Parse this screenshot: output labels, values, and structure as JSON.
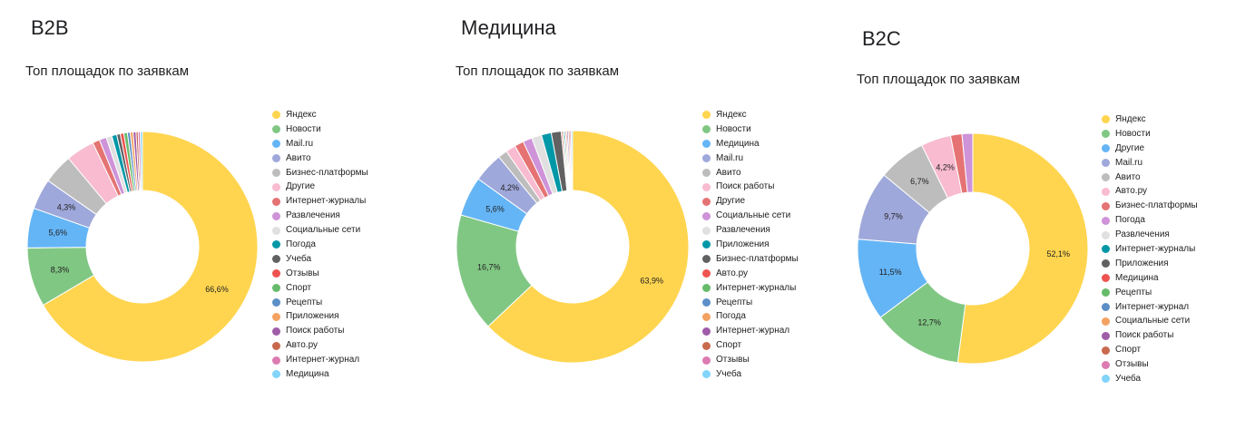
{
  "chart_data": [
    {
      "type": "pie",
      "section_title": "B2B",
      "title": "Топ площадок по заявкам",
      "categories": [
        "Яндекс",
        "Новости",
        "Mail.ru",
        "Авито",
        "Бизнес-платформы",
        "Другие",
        "Интернет-журналы",
        "Развлечения",
        "Социальные сети",
        "Погода",
        "Учеба",
        "Отзывы",
        "Спорт",
        "Рецепты",
        "Приложения",
        "Поиск работы",
        "Авто.ру",
        "Интернет-журнал",
        "Медицина"
      ],
      "values": [
        66.6,
        8.3,
        5.6,
        4.3,
        4.2,
        4.0,
        1.0,
        1.0,
        0.8,
        0.7,
        0.5,
        0.5,
        0.5,
        0.4,
        0.4,
        0.4,
        0.3,
        0.3,
        0.3
      ],
      "value_labels": [
        "66,6%",
        "8,3%",
        "5,6%",
        "4,3%",
        "",
        "",
        "",
        "",
        "",
        "",
        "",
        "",
        "",
        "",
        "",
        "",
        "",
        "",
        ""
      ],
      "colors": [
        "#ffd54f",
        "#81c784",
        "#64b5f6",
        "#9fa8da",
        "#bdbdbd",
        "#f8bbd0",
        "#e57373",
        "#ce93d8",
        "#e0e0e0",
        "#0097a7",
        "#616161",
        "#ef5350",
        "#66bb6a",
        "#5c8fc7",
        "#f4a261",
        "#a05ca8",
        "#c8694e",
        "#dc7bb1",
        "#81d4fa"
      ],
      "legend_position": "right"
    },
    {
      "type": "pie",
      "section_title": "Медицина",
      "title": "Топ площадок по заявкам",
      "categories": [
        "Яндекс",
        "Новости",
        "Медицина",
        "Mail.ru",
        "Авито",
        "Поиск работы",
        "Другие",
        "Социальные сети",
        "Развлечения",
        "Приложения",
        "Бизнес-платформы",
        "Авто.ру",
        "Интернет-журналы",
        "Рецепты",
        "Погода",
        "Интернет-журнал",
        "Спорт",
        "Отзывы",
        "Учеба"
      ],
      "values": [
        63.9,
        16.7,
        5.6,
        4.2,
        1.3,
        1.4,
        1.3,
        1.3,
        1.4,
        1.4,
        1.4,
        0.2,
        0.2,
        0.2,
        0.2,
        0.2,
        0.2,
        0.2,
        0.2
      ],
      "value_labels": [
        "63,9%",
        "16,7%",
        "5,6%",
        "4,2%",
        "",
        "",
        "",
        "",
        "",
        "",
        "",
        "",
        "",
        "",
        "",
        "",
        "",
        "",
        ""
      ],
      "colors": [
        "#ffd54f",
        "#81c784",
        "#64b5f6",
        "#9fa8da",
        "#bdbdbd",
        "#f8bbd0",
        "#e57373",
        "#ce93d8",
        "#e0e0e0",
        "#0097a7",
        "#616161",
        "#ef5350",
        "#66bb6a",
        "#5c8fc7",
        "#f4a261",
        "#a05ca8",
        "#c8694e",
        "#dc7bb1",
        "#81d4fa"
      ],
      "legend_position": "right"
    },
    {
      "type": "pie",
      "section_title": "B2C",
      "title": "Топ площадок по заявкам",
      "categories": [
        "Яндекс",
        "Новости",
        "Другие",
        "Mail.ru",
        "Авито",
        "Авто.ру",
        "Бизнес-платформы",
        "Погода",
        "Развлечения",
        "Интернет-журналы",
        "Приложения",
        "Медицина",
        "Рецепты",
        "Интернет-журнал",
        "Социальные сети",
        "Поиск работы",
        "Спорт",
        "Отзывы",
        "Учеба"
      ],
      "values": [
        52.1,
        12.7,
        11.5,
        9.7,
        6.7,
        4.2,
        1.6,
        1.5,
        0,
        0,
        0,
        0,
        0,
        0,
        0,
        0,
        0,
        0,
        0
      ],
      "value_labels": [
        "52,1%",
        "12,7%",
        "11,5%",
        "9,7%",
        "6,7%",
        "4,2%",
        "",
        "",
        "",
        "",
        "",
        "",
        "",
        "",
        "",
        "",
        "",
        "",
        ""
      ],
      "colors": [
        "#ffd54f",
        "#81c784",
        "#64b5f6",
        "#9fa8da",
        "#bdbdbd",
        "#f8bbd0",
        "#e57373",
        "#ce93d8",
        "#e0e0e0",
        "#0097a7",
        "#616161",
        "#ef5350",
        "#66bb6a",
        "#5c8fc7",
        "#f4a261",
        "#a05ca8",
        "#c8694e",
        "#dc7bb1",
        "#81d4fa"
      ],
      "legend_position": "right"
    }
  ]
}
